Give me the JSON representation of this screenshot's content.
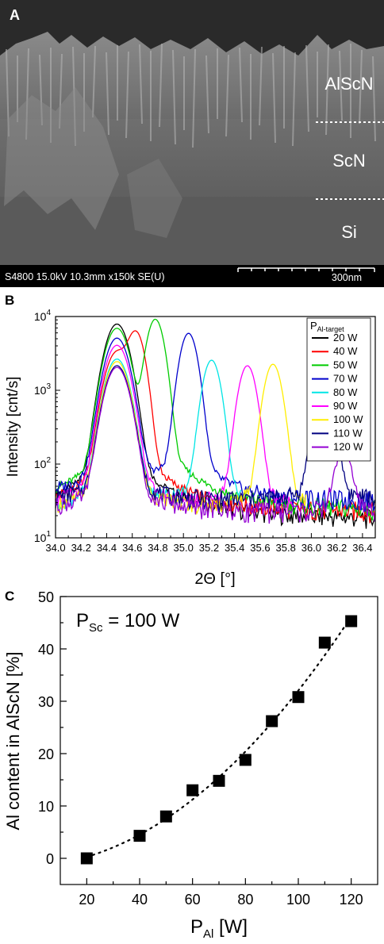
{
  "panel_a": {
    "letter": "A",
    "layers": [
      "AlScN",
      "ScN",
      "Si"
    ],
    "info_bar": "S4800 15.0kV 10.3mm x150k SE(U)",
    "scale_label": "300nm"
  },
  "chart_data": [
    {
      "panel": "B",
      "type": "line",
      "xlabel": "2Θ [°]",
      "ylabel": "Intensity [cnt/s]",
      "xlim": [
        34.0,
        36.5
      ],
      "ylim": [
        10,
        10000
      ],
      "yscale": "log",
      "x_ticks": [
        "34.0",
        "34.2",
        "34.4",
        "34.6",
        "34.8",
        "35.0",
        "35.2",
        "35.4",
        "35.6",
        "35.8",
        "36.0",
        "36.2",
        "36.4"
      ],
      "y_ticks": [
        "10^1",
        "10^2",
        "10^3",
        "10^4"
      ],
      "legend_title_main": "P",
      "legend_title_sub": "Al-target",
      "legend_position": "top-right",
      "series": [
        {
          "name": "20 W",
          "color": "#000000",
          "substrate_peak": 7800,
          "film_peak_x": null,
          "film_peak_y": null
        },
        {
          "name": "40 W",
          "color": "#ff0000",
          "substrate_peak": 3200,
          "film_peak_x": 34.63,
          "film_peak_y": 5800
        },
        {
          "name": "50 W",
          "color": "#00cc00",
          "substrate_peak": 6800,
          "film_peak_x": 34.78,
          "film_peak_y": 9000
        },
        {
          "name": "70 W",
          "color": "#0000cc",
          "substrate_peak": 5000,
          "film_peak_x": 35.04,
          "film_peak_y": 5800
        },
        {
          "name": "80 W",
          "color": "#00e5e5",
          "substrate_peak": 2600,
          "film_peak_x": 35.22,
          "film_peak_y": 2500
        },
        {
          "name": "90 W",
          "color": "#ff00ff",
          "substrate_peak": 4000,
          "film_peak_x": 35.5,
          "film_peak_y": 2100
        },
        {
          "name": "100 W",
          "color": "#ffee00",
          "substrate_peak": 2400,
          "film_peak_x": 35.7,
          "film_peak_y": 2200
        },
        {
          "name": "110 W",
          "color": "#000080",
          "substrate_peak": 2100,
          "film_peak_x": 36.1,
          "film_peak_y": 1600
        },
        {
          "name": "120 W",
          "color": "#9400d3",
          "substrate_peak": 2000,
          "film_peak_x": 36.25,
          "film_peak_y": 120
        }
      ]
    },
    {
      "panel": "C",
      "type": "scatter",
      "xlabel_main": "P",
      "xlabel_sub": "Al",
      "xlabel_unit": " [W]",
      "ylabel": "Al content in AlScN [%]",
      "annotation_main": "P",
      "annotation_sub": "Sc",
      "annotation_rest": " = 100 W",
      "xlim": [
        10,
        130
      ],
      "ylim": [
        -5,
        50
      ],
      "x_ticks": [
        20,
        40,
        60,
        80,
        100,
        120
      ],
      "y_ticks": [
        0,
        10,
        20,
        30,
        40,
        50
      ],
      "x": [
        20,
        40,
        50,
        60,
        70,
        80,
        90,
        100,
        110,
        120
      ],
      "y": [
        0,
        4.3,
        8,
        13,
        14.8,
        18.8,
        26.2,
        30.8,
        41.2,
        45.3
      ],
      "fit": "dotted"
    }
  ]
}
